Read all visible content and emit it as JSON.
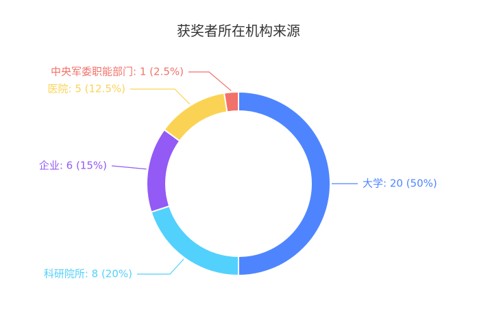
{
  "chart_data": {
    "type": "pie",
    "title": "获奖者所在机构来源",
    "slices": [
      {
        "name": "大学",
        "value": 20,
        "percent": "50%",
        "label": "大学: 20 (50%)",
        "color": "#4E85FF"
      },
      {
        "name": "科研院所",
        "value": 8,
        "percent": "20%",
        "label": "科研院所: 8 (20%)",
        "color": "#52D1FD"
      },
      {
        "name": "企业",
        "value": 6,
        "percent": "15%",
        "label": "企业: 6 (15%)",
        "color": "#935AF6"
      },
      {
        "name": "医院",
        "value": 5,
        "percent": "12.5%",
        "label": "医院: 5 (12.5%)",
        "color": "#FBD354"
      },
      {
        "name": "中央军委职能部门",
        "value": 1,
        "percent": "2.5%",
        "label": "中央军委职能部门: 1 (2.5%)",
        "color": "#F2716A"
      }
    ],
    "legend": "none",
    "grid": false
  }
}
